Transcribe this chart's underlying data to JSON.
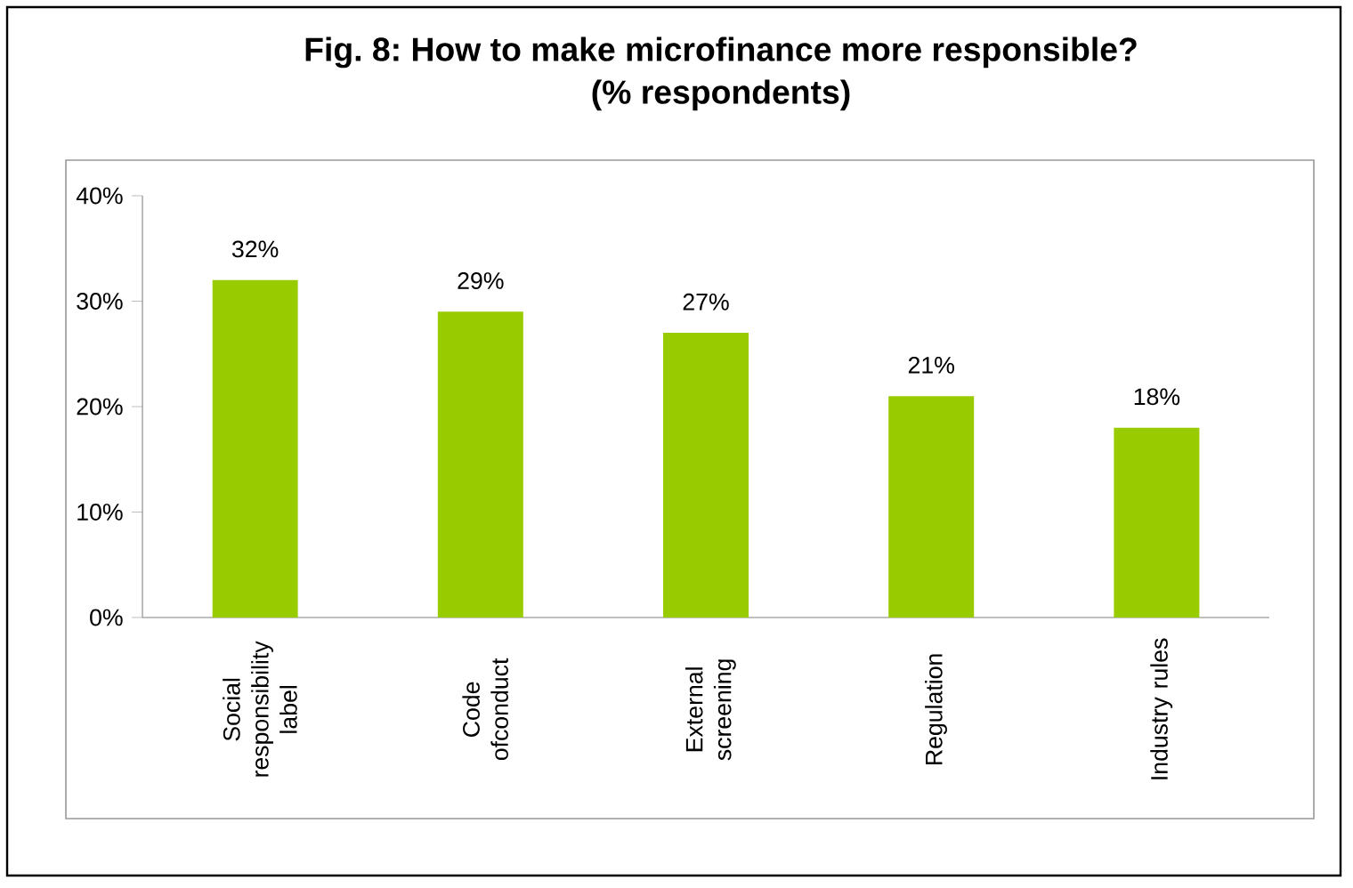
{
  "chart_data": {
    "type": "bar",
    "title": "Fig. 8: How to make microfinance more responsible?",
    "subtitle": "(% respondents)",
    "categories": [
      "Social responsibility label",
      "Code ofconduct",
      "External screening",
      "Regulation",
      "Industry rules"
    ],
    "values": [
      32,
      29,
      27,
      21,
      18
    ],
    "value_labels": [
      "32%",
      "29%",
      "27%",
      "21%",
      "18%"
    ],
    "color": "#99cc00",
    "ylim": [
      0,
      40
    ],
    "yticks": [
      {
        "value": 0,
        "label": "0%"
      },
      {
        "value": 10,
        "label": "10%"
      },
      {
        "value": 20,
        "label": "20%"
      },
      {
        "value": 30,
        "label": "30%"
      },
      {
        "value": 40,
        "label": "40%"
      }
    ],
    "grid": false
  }
}
